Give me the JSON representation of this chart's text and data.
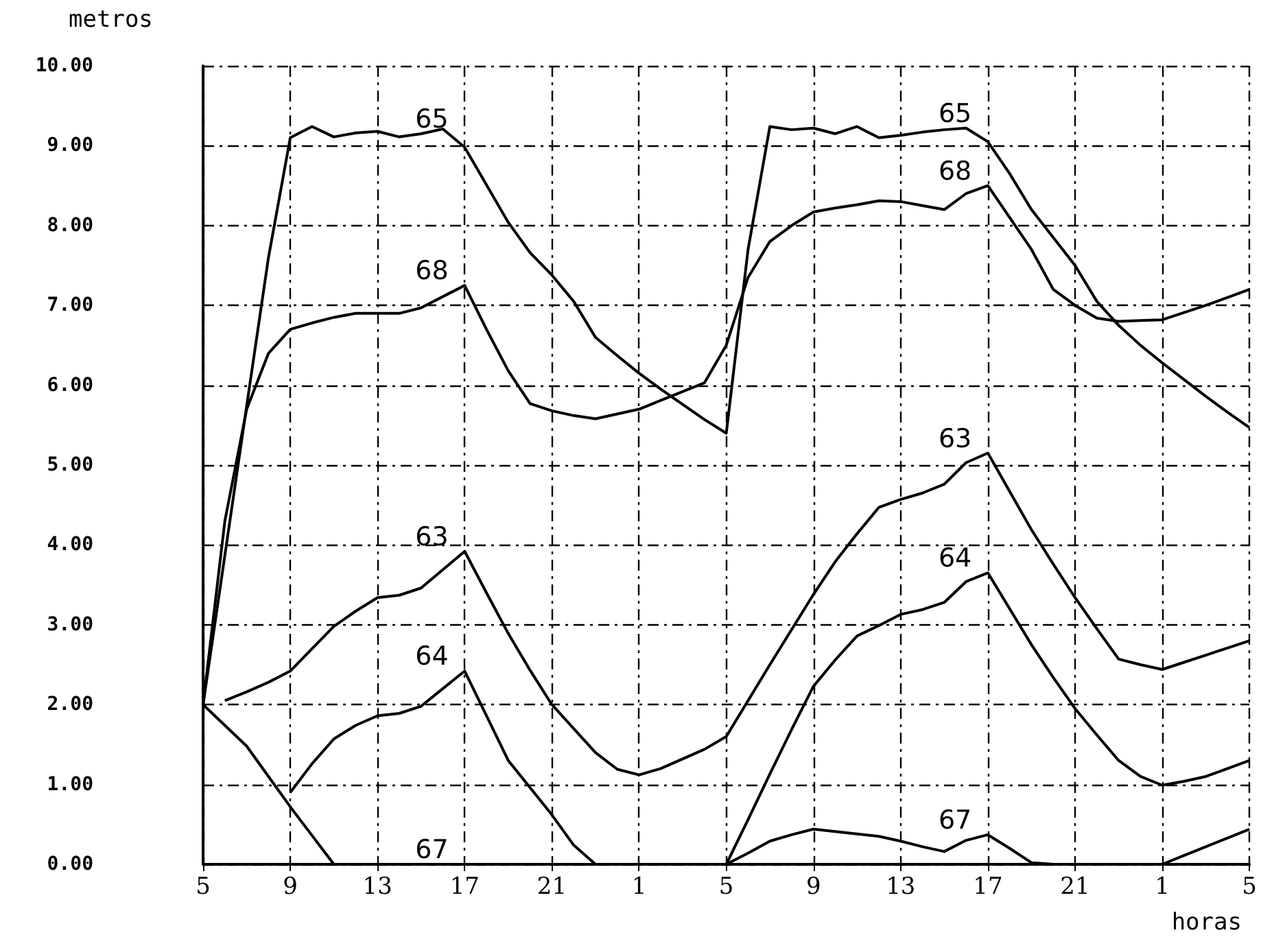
{
  "chart_data": {
    "type": "line",
    "xlabel": "horas",
    "ylabel": "metros",
    "categories": [
      "5",
      null,
      null,
      null,
      "9",
      null,
      null,
      null,
      "13",
      null,
      null,
      null,
      "17",
      null,
      null,
      null,
      "21",
      null,
      null,
      null,
      "1",
      null,
      null,
      null,
      "5",
      null,
      null,
      null,
      "9",
      null,
      null,
      null,
      "13",
      null,
      null,
      null,
      "17",
      null,
      null,
      null,
      "21",
      null,
      null,
      null,
      "1",
      null,
      null,
      null,
      "5"
    ],
    "ylim": [
      0,
      10
    ],
    "yticks": [
      {
        "value": 0,
        "label": "0.00"
      },
      {
        "value": 1,
        "label": "1.00"
      },
      {
        "value": 2,
        "label": "2.00"
      },
      {
        "value": 3,
        "label": "3.00"
      },
      {
        "value": 4,
        "label": "4.00"
      },
      {
        "value": 5,
        "label": "5.00"
      },
      {
        "value": 6,
        "label": "6.00"
      },
      {
        "value": 7,
        "label": "7.00"
      },
      {
        "value": 8,
        "label": "8.00"
      },
      {
        "value": 9,
        "label": "9.00"
      },
      {
        "value": 10,
        "label": "10.00"
      }
    ],
    "grid": true,
    "marker": "none",
    "line_style": "solid",
    "series": [
      {
        "name": "65",
        "color": "#000000",
        "values": [
          2.0,
          3.87,
          5.74,
          7.6,
          9.1,
          9.24,
          9.11,
          9.16,
          9.18,
          9.11,
          9.15,
          9.21,
          8.98,
          8.51,
          8.04,
          7.66,
          7.38,
          7.05,
          6.6,
          6.37,
          6.15,
          5.95,
          5.76,
          5.57,
          5.4,
          7.7,
          9.24,
          9.2,
          9.22,
          9.15,
          9.24,
          9.1,
          9.13,
          9.17,
          9.2,
          9.22,
          9.05,
          8.65,
          8.2,
          7.85,
          7.5,
          7.05,
          6.75,
          6.5,
          6.28,
          6.07,
          5.86,
          5.66,
          5.47
        ]
      },
      {
        "name": "68",
        "color": "#000000",
        "values": [
          2.0,
          4.3,
          5.7,
          6.4,
          6.7,
          6.78,
          6.85,
          6.9,
          6.9,
          6.9,
          6.97,
          7.11,
          7.25,
          6.7,
          6.18,
          5.77,
          5.68,
          5.62,
          5.58,
          5.64,
          5.7,
          5.81,
          5.92,
          6.03,
          6.5,
          7.35,
          7.8,
          8.0,
          8.17,
          8.22,
          8.26,
          8.31,
          8.3,
          8.25,
          8.2,
          8.4,
          8.5,
          8.1,
          7.7,
          7.2,
          7.0,
          6.84,
          6.8,
          6.81,
          6.82,
          6.91,
          7.0,
          7.1,
          7.2
        ]
      },
      {
        "name": "63",
        "color": "#000000",
        "values": [
          null,
          2.05,
          2.16,
          2.28,
          2.42,
          2.7,
          2.98,
          3.17,
          3.34,
          3.37,
          3.46,
          3.69,
          3.92,
          3.4,
          2.89,
          2.43,
          2.0,
          1.7,
          1.4,
          1.19,
          1.12,
          1.2,
          1.32,
          1.44,
          1.6,
          2.05,
          2.5,
          2.94,
          3.38,
          3.79,
          4.14,
          4.47,
          4.57,
          4.65,
          4.76,
          5.03,
          5.15,
          4.67,
          4.19,
          3.76,
          3.34,
          2.95,
          2.57,
          2.5,
          2.44,
          2.53,
          2.62,
          2.71,
          2.8
        ]
      },
      {
        "name": "64",
        "color": "#000000",
        "values": [
          null,
          null,
          null,
          null,
          0.9,
          1.26,
          1.57,
          1.74,
          1.86,
          1.89,
          1.98,
          2.2,
          2.42,
          1.86,
          1.3,
          0.96,
          0.62,
          0.24,
          0,
          0,
          0,
          0,
          0,
          0,
          0,
          0.56,
          1.13,
          1.69,
          2.23,
          2.56,
          2.86,
          2.99,
          3.13,
          3.19,
          3.28,
          3.54,
          3.65,
          3.2,
          2.75,
          2.34,
          1.95,
          1.62,
          1.3,
          1.1,
          0.99,
          1.04,
          1.1,
          1.2,
          1.3
        ]
      },
      {
        "name": "67",
        "color": "#000000",
        "values": [
          2.0,
          1.74,
          1.48,
          1.1,
          0.72,
          0.36,
          0,
          0,
          0,
          0,
          0,
          0,
          0,
          0,
          0,
          0,
          0,
          0,
          0,
          0,
          0,
          0,
          0,
          0,
          0,
          0.14,
          0.29,
          0.37,
          0.44,
          0.41,
          0.38,
          0.35,
          0.29,
          0.22,
          0.16,
          0.3,
          0.37,
          0.2,
          0.02,
          0,
          0,
          0,
          0,
          0,
          0,
          0.11,
          0.22,
          0.33,
          0.44
        ]
      }
    ]
  }
}
